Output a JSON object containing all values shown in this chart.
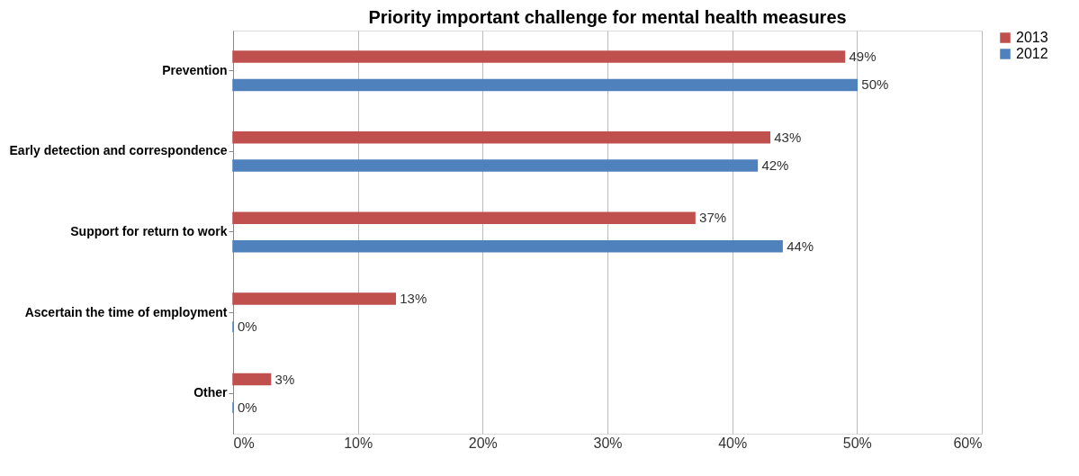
{
  "chart_data": {
    "type": "bar",
    "orientation": "horizontal",
    "title": "Priority important challenge for mental health measures",
    "categories": [
      "Prevention",
      "Early detection and correspondence",
      "Support for return to work",
      "Ascertain the time of employment",
      "Other"
    ],
    "series": [
      {
        "name": "2013",
        "color": "#c0504d",
        "values": [
          49,
          43,
          37,
          13,
          3
        ],
        "value_labels": [
          "49%",
          "43%",
          "37%",
          "13%",
          "3%"
        ]
      },
      {
        "name": "2012",
        "color": "#4f81bd",
        "values": [
          50,
          42,
          44,
          0,
          0
        ],
        "value_labels": [
          "50%",
          "42%",
          "44%",
          "0%",
          "0%"
        ]
      }
    ],
    "xlim": [
      0,
      60
    ],
    "xticks": [
      {
        "value": 0,
        "label": "0%"
      },
      {
        "value": 10,
        "label": "10%"
      },
      {
        "value": 20,
        "label": "20%"
      },
      {
        "value": 30,
        "label": "30%"
      },
      {
        "value": 40,
        "label": "40%"
      },
      {
        "value": 50,
        "label": "50%"
      },
      {
        "value": 60,
        "label": "60%"
      }
    ],
    "grid": "x",
    "legend": "right"
  }
}
